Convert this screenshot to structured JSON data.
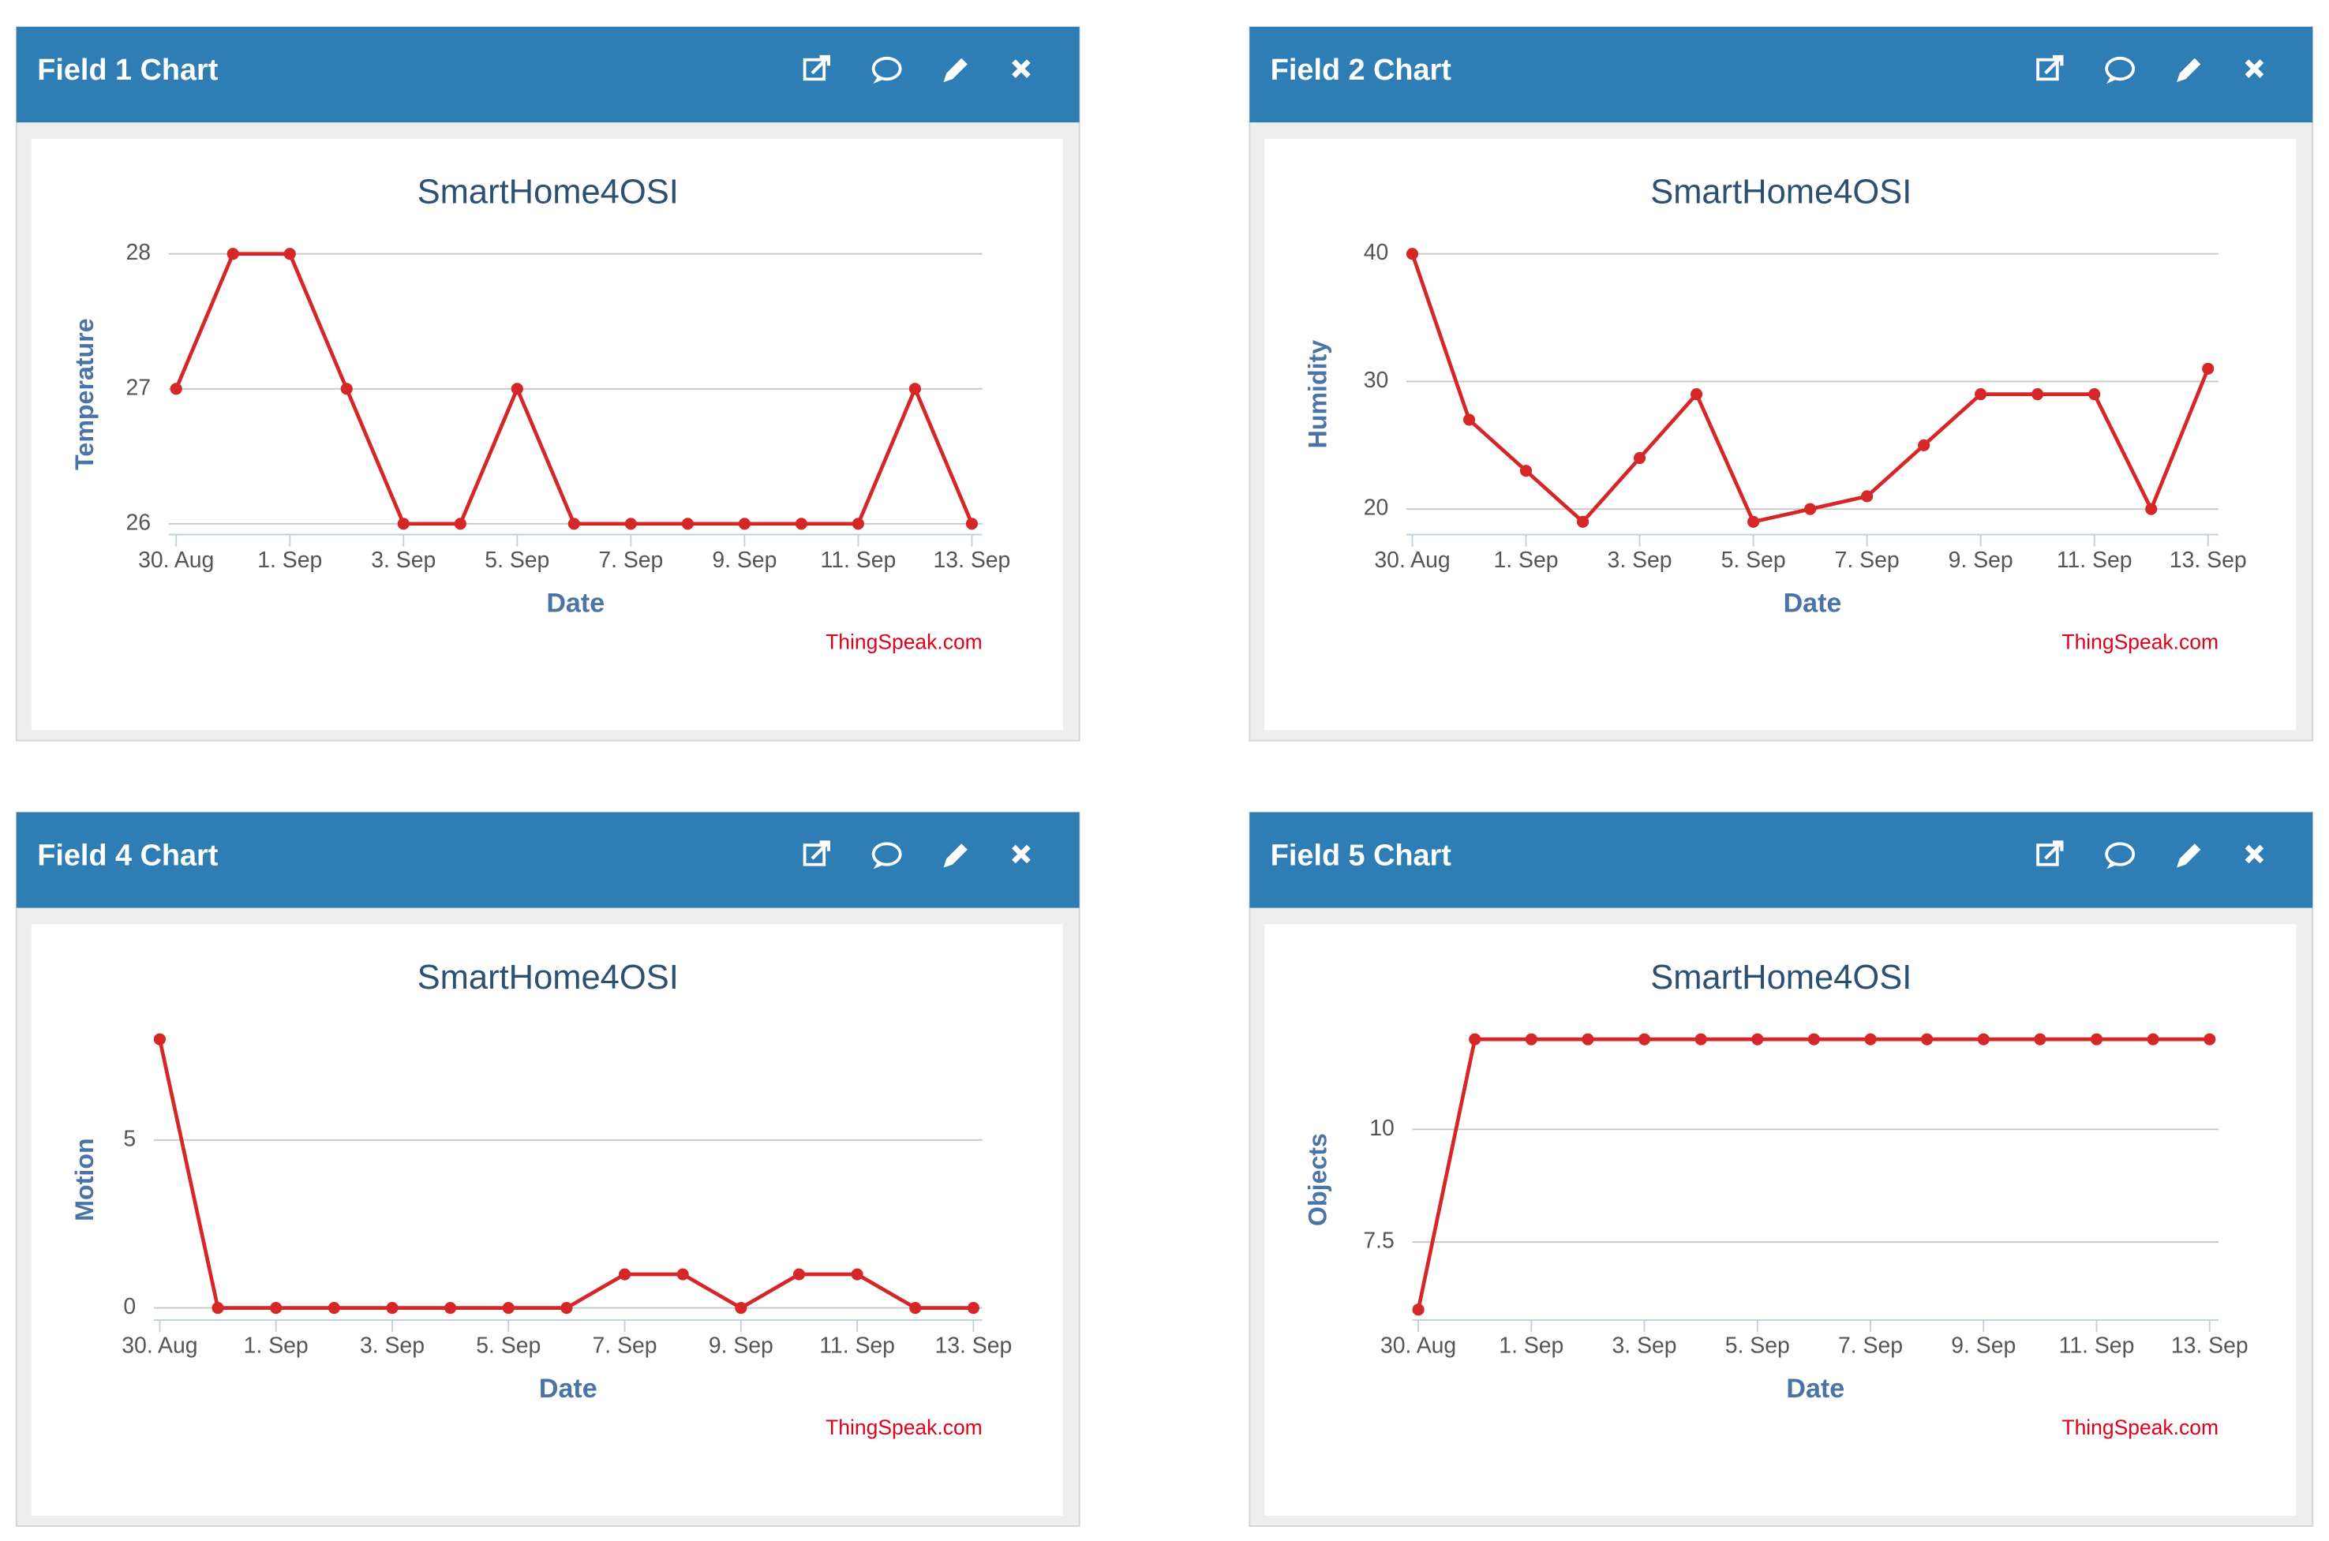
{
  "chart_data": [
    {
      "type": "line",
      "panel_title": "Field 1 Chart",
      "title": "SmartHome4OSI",
      "x_label": "Date",
      "y_label": "Temperature",
      "credit": "ThingSpeak.com",
      "categories": [
        "30. Aug",
        null,
        "1. Sep",
        null,
        "3. Sep",
        null,
        "5. Sep",
        null,
        "7. Sep",
        null,
        "9. Sep",
        null,
        "11. Sep",
        null,
        "13. Sep"
      ],
      "values": [
        27,
        28,
        28,
        27,
        26,
        26,
        27,
        26,
        26,
        26,
        26,
        26,
        26,
        27,
        26
      ],
      "color": "#d62728",
      "ylim": [
        25.92,
        28
      ],
      "yticks": [
        26,
        27,
        28
      ],
      "grid": true
    },
    {
      "type": "line",
      "panel_title": "Field 2 Chart",
      "title": "SmartHome4OSI",
      "x_label": "Date",
      "y_label": "Humidity",
      "credit": "ThingSpeak.com",
      "categories": [
        "30. Aug",
        null,
        "1. Sep",
        null,
        "3. Sep",
        null,
        "5. Sep",
        null,
        "7. Sep",
        null,
        "9. Sep",
        null,
        "11. Sep",
        null,
        "13. Sep"
      ],
      "values": [
        40,
        27,
        23,
        19,
        24,
        29,
        19,
        20,
        21,
        25,
        29,
        29,
        29,
        20,
        31
      ],
      "color": "#d62728",
      "ylim": [
        18,
        40
      ],
      "yticks": [
        20,
        30,
        40
      ],
      "grid": true
    },
    {
      "type": "line",
      "panel_title": "Field 4 Chart",
      "title": "SmartHome4OSI",
      "x_label": "Date",
      "y_label": "Motion",
      "credit": "ThingSpeak.com",
      "categories": [
        "30. Aug",
        null,
        "1. Sep",
        null,
        "3. Sep",
        null,
        "5. Sep",
        null,
        "7. Sep",
        null,
        "9. Sep",
        null,
        "11. Sep",
        null,
        "13. Sep"
      ],
      "values": [
        8,
        0,
        0,
        0,
        0,
        0,
        0,
        0,
        1,
        1,
        0,
        1,
        1,
        0,
        0
      ],
      "color": "#d62728",
      "ylim": [
        -0.36,
        8
      ],
      "yticks": [
        0,
        5
      ],
      "grid": true
    },
    {
      "type": "line",
      "panel_title": "Field 5 Chart",
      "title": "SmartHome4OSI",
      "x_label": "Date",
      "y_label": "Objects",
      "credit": "ThingSpeak.com",
      "categories": [
        "30. Aug",
        null,
        "1. Sep",
        null,
        "3. Sep",
        null,
        "5. Sep",
        null,
        "7. Sep",
        null,
        "9. Sep",
        null,
        "11. Sep",
        null,
        "13. Sep"
      ],
      "values": [
        6,
        12,
        12,
        12,
        12,
        12,
        12,
        12,
        12,
        12,
        12,
        12,
        12,
        12,
        12
      ],
      "color": "#d62728",
      "ylim": [
        5.77,
        12
      ],
      "yticks": [
        7.5,
        10
      ],
      "grid": true
    }
  ]
}
